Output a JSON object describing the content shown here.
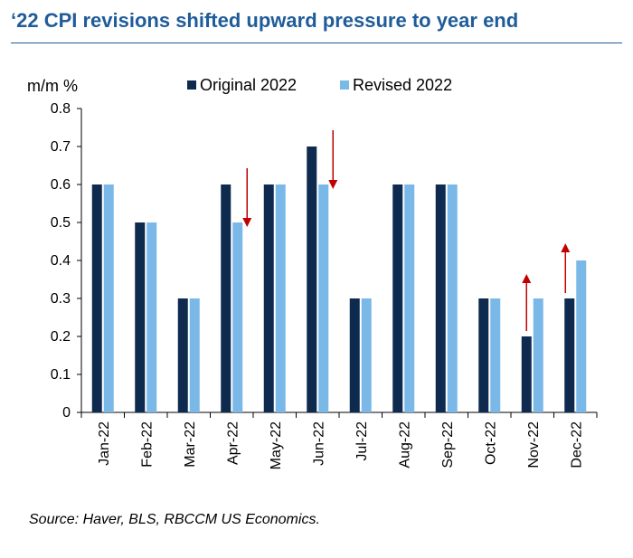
{
  "title": "‘22 CPI revisions shifted upward pressure to year end",
  "source": "Source: Haver, BLS, RBCCM US Economics.",
  "colors": {
    "title": "#1f5c99",
    "original": "#0e2a4f",
    "revised": "#7ab8e8",
    "arrow": "#c00000"
  },
  "chart_data": {
    "type": "bar",
    "ylabel": "m/m %",
    "ylim": [
      0,
      0.8
    ],
    "yticks": [
      "0",
      "0.1",
      "0.2",
      "0.3",
      "0.4",
      "0.5",
      "0.6",
      "0.7",
      "0.8"
    ],
    "categories": [
      "Jan-22",
      "Feb-22",
      "Mar-22",
      "Apr-22",
      "May-22",
      "Jun-22",
      "Jul-22",
      "Aug-22",
      "Sep-22",
      "Oct-22",
      "Nov-22",
      "Dec-22"
    ],
    "series": [
      {
        "name": "Original 2022",
        "values": [
          0.6,
          0.5,
          0.3,
          0.6,
          0.6,
          0.7,
          0.3,
          0.6,
          0.6,
          0.3,
          0.2,
          0.3
        ]
      },
      {
        "name": "Revised 2022",
        "values": [
          0.6,
          0.5,
          0.3,
          0.5,
          0.6,
          0.6,
          0.3,
          0.6,
          0.6,
          0.3,
          0.3,
          0.4
        ]
      }
    ],
    "legend_position": "top",
    "grid": false,
    "annotations": [
      {
        "type": "arrow",
        "direction": "down",
        "category": "Apr-22"
      },
      {
        "type": "arrow",
        "direction": "down",
        "category": "Jun-22"
      },
      {
        "type": "arrow",
        "direction": "up",
        "category": "Nov-22"
      },
      {
        "type": "arrow",
        "direction": "up",
        "category": "Dec-22"
      }
    ]
  }
}
